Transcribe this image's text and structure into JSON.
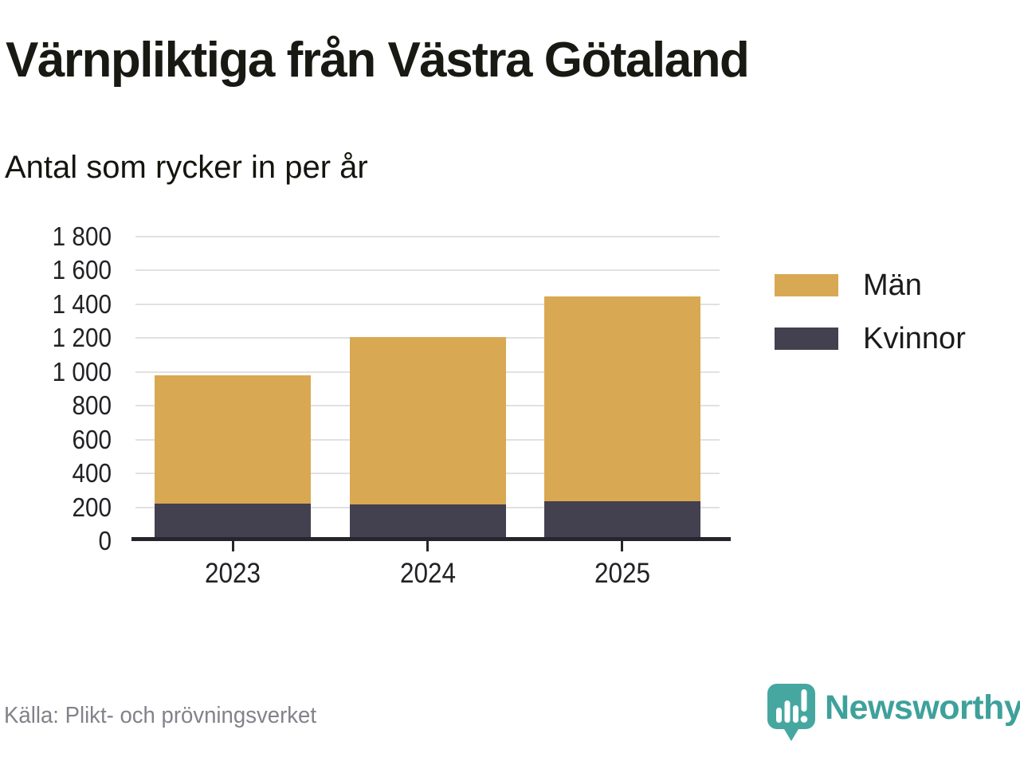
{
  "title": "Värnpliktiga från Västra Götaland",
  "subtitle": "Antal som rycker in per år",
  "source": "Källa: Plikt- och prövningsverket",
  "brand": {
    "name": "Newsworthy",
    "icon": "newsworthy-speech-bubble-bar-chart-icon",
    "icon_color": "#46a7a1",
    "text_color": "#3ea19b"
  },
  "colors": {
    "men": "#d9a852",
    "women": "#434050",
    "axis": "#26252e",
    "grid": "#e1e1e1",
    "text": "#222226",
    "muted": "#82828a"
  },
  "legend": [
    {
      "label": "Män",
      "color_key": "men"
    },
    {
      "label": "Kvinnor",
      "color_key": "women"
    }
  ],
  "chart_data": {
    "type": "bar",
    "stacked": true,
    "title": "Värnpliktiga från Västra Götaland",
    "subtitle": "Antal som rycker in per år",
    "categories": [
      "2023",
      "2024",
      "2025"
    ],
    "series": [
      {
        "name": "Män",
        "color_key": "men",
        "values": [
          760,
          990,
          1210
        ]
      },
      {
        "name": "Kvinnor",
        "color_key": "women",
        "values": [
          220,
          215,
          235
        ]
      }
    ],
    "totals": [
      980,
      1205,
      1445
    ],
    "xlabel": "",
    "ylabel": "",
    "ylim": [
      0,
      1800
    ],
    "yticks": [
      0,
      200,
      400,
      600,
      800,
      1000,
      1200,
      1400,
      1600,
      1800
    ],
    "ytick_labels": [
      "0",
      "200",
      "400",
      "600",
      "800",
      "1 000",
      "1 200",
      "1 400",
      "1 600",
      "1 800"
    ],
    "grid": true,
    "legend_position": "right"
  }
}
